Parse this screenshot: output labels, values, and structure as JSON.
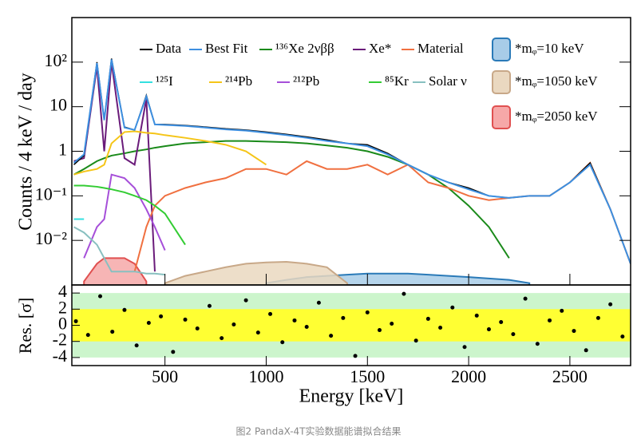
{
  "chart_data": [
    {
      "type": "line",
      "ylabel": "Counts / 4 keV / day",
      "log_y": true,
      "xlim": [
        40,
        2800
      ],
      "ylim": [
        0.001,
        1000
      ],
      "yticks": [
        {
          "value": 0.01,
          "label": "10⁻²"
        },
        {
          "value": 0.1,
          "label": "10⁻¹"
        },
        1,
        10,
        {
          "value": 100,
          "label": "10²"
        }
      ],
      "x": [
        50,
        100,
        164,
        200,
        236,
        300,
        350,
        408,
        450,
        500,
        600,
        700,
        800,
        900,
        1000,
        1100,
        1200,
        1300,
        1400,
        1500,
        1600,
        1700,
        1800,
        1900,
        2000,
        2100,
        2200,
        2300,
        2400,
        2500,
        2600,
        2700,
        2800
      ],
      "series": [
        {
          "name": "Data",
          "color": "#000000",
          "values": [
            0.5,
            0.8,
            100,
            5,
            120,
            3.5,
            3,
            18,
            4,
            4,
            3.8,
            3.5,
            3.2,
            3,
            2.7,
            2.4,
            2.1,
            1.8,
            1.5,
            1.4,
            0.9,
            0.5,
            0.3,
            0.2,
            0.15,
            0.1,
            0.09,
            0.1,
            0.1,
            0.2,
            0.55,
            0.05,
            0.003
          ]
        },
        {
          "name": "Best Fit",
          "color": "#3d8fe0",
          "values": [
            0.55,
            0.85,
            95,
            5,
            115,
            3.4,
            3,
            17,
            4,
            3.9,
            3.7,
            3.4,
            3.1,
            2.9,
            2.6,
            2.3,
            2,
            1.7,
            1.5,
            1.3,
            0.85,
            0.5,
            0.3,
            0.2,
            0.14,
            0.1,
            0.09,
            0.1,
            0.1,
            0.2,
            0.5,
            0.05,
            0.003
          ]
        },
        {
          "name": "¹³⁶Xe 2νββ",
          "color": "#1a8a1a",
          "values": [
            0.3,
            0.4,
            0.6,
            0.7,
            0.8,
            0.9,
            1,
            1.1,
            1.2,
            1.3,
            1.5,
            1.6,
            1.7,
            1.7,
            1.65,
            1.6,
            1.5,
            1.35,
            1.2,
            1,
            0.75,
            0.5,
            0.3,
            0.15,
            0.06,
            0.02,
            0.004,
            null,
            null,
            null,
            null,
            null,
            null
          ]
        },
        {
          "name": "Xe*",
          "color": "#6a1b7a",
          "values": [
            0.6,
            0.7,
            80,
            1,
            100,
            0.7,
            0.5,
            15,
            0.002,
            null,
            null,
            null,
            null,
            null,
            null,
            null,
            null,
            null,
            null,
            null,
            null,
            null,
            null,
            null,
            null,
            null,
            null,
            null,
            null,
            null,
            null,
            null,
            null
          ]
        },
        {
          "name": "Material",
          "color": "#f07040",
          "values": [
            null,
            null,
            null,
            null,
            null,
            null,
            0.002,
            0.02,
            0.06,
            0.1,
            0.15,
            0.2,
            0.25,
            0.4,
            0.4,
            0.3,
            0.6,
            0.4,
            0.4,
            0.5,
            0.3,
            0.5,
            0.2,
            0.15,
            0.1,
            0.08,
            0.09,
            0.1,
            0.1,
            0.2,
            0.55,
            0.05,
            0.003
          ]
        },
        {
          "name": "¹²⁵I",
          "color": "#33e0e0",
          "values": [
            0.03,
            0.03,
            null,
            null,
            null,
            null,
            null,
            null,
            null,
            null,
            null,
            null,
            null,
            null,
            null,
            null,
            null,
            null,
            null,
            null,
            null,
            null,
            null,
            null,
            null,
            null,
            null,
            null,
            null,
            null,
            null,
            null,
            null
          ]
        },
        {
          "name": "²¹⁴Pb",
          "color": "#f5c518",
          "values": [
            0.3,
            0.35,
            0.4,
            0.5,
            1.5,
            2.7,
            2.8,
            2.6,
            2.5,
            2.3,
            2,
            1.7,
            1.4,
            1,
            0.5,
            null,
            null,
            null,
            null,
            null,
            null,
            null,
            null,
            null,
            null,
            null,
            null,
            null,
            null,
            null,
            null,
            null,
            null
          ]
        },
        {
          "name": "²¹²Pb",
          "color": "#a64fd9",
          "values": [
            null,
            0.004,
            0.02,
            0.03,
            0.3,
            0.25,
            0.15,
            0.05,
            0.02,
            0.006,
            null,
            null,
            null,
            null,
            null,
            null,
            null,
            null,
            null,
            null,
            null,
            null,
            null,
            null,
            null,
            null,
            null,
            null,
            null,
            null,
            null,
            null,
            null
          ]
        },
        {
          "name": "⁸⁵Kr",
          "color": "#33cc33",
          "values": [
            0.17,
            0.17,
            0.16,
            0.15,
            0.14,
            0.12,
            0.1,
            0.08,
            0.06,
            0.04,
            0.008,
            null,
            null,
            null,
            null,
            null,
            null,
            null,
            null,
            null,
            null,
            null,
            null,
            null,
            null,
            null,
            null,
            null,
            null,
            null,
            null,
            null,
            null
          ]
        },
        {
          "name": "Solar ν",
          "color": "#88c0c0",
          "values": [
            0.02,
            0.015,
            0.008,
            0.004,
            0.002,
            0.002,
            0.002,
            0.0018,
            0.0018,
            0.0017,
            null,
            null,
            null,
            null,
            null,
            null,
            null,
            null,
            null,
            null,
            null,
            null,
            null,
            null,
            null,
            null,
            null,
            null,
            null,
            null,
            null,
            null,
            null
          ]
        },
        {
          "name": "*mᵩ=10 keV",
          "color": "#2a7ab8",
          "fill": "#a8cce8",
          "area": true,
          "values": [
            null,
            null,
            null,
            null,
            null,
            null,
            null,
            null,
            null,
            null,
            null,
            null,
            null,
            null,
            0.0011,
            0.0013,
            0.0015,
            0.0016,
            0.0017,
            0.0018,
            0.0018,
            0.0018,
            0.0017,
            0.0016,
            0.0015,
            0.0014,
            0.0013,
            0.0011,
            null,
            null,
            null,
            null,
            null
          ]
        },
        {
          "name": "*mᵩ=1050 keV",
          "color": "#c8a888",
          "fill": "#ead8c0",
          "area": true,
          "values": [
            null,
            null,
            null,
            null,
            null,
            null,
            null,
            null,
            null,
            0.0011,
            0.0016,
            0.002,
            0.0025,
            0.003,
            0.0032,
            0.0033,
            0.003,
            0.0025,
            0.0011,
            null,
            null,
            null,
            null,
            null,
            null,
            null,
            null,
            null,
            null,
            null,
            null,
            null,
            null
          ]
        },
        {
          "name": "*mᵩ=2050 keV",
          "color": "#e05050",
          "fill": "#f6a8a8",
          "area": true,
          "values": [
            null,
            0.0012,
            0.003,
            0.004,
            0.004,
            0.004,
            0.003,
            0.0012,
            null,
            null,
            null,
            null,
            null,
            null,
            null,
            null,
            null,
            null,
            null,
            null,
            null,
            null,
            null,
            null,
            null,
            null,
            null,
            null,
            null,
            null,
            null,
            null,
            null
          ]
        }
      ]
    },
    {
      "type": "scatter",
      "ylabel": "Res. [σ]",
      "xlabel": "Energy [keV]",
      "xlim": [
        40,
        2800
      ],
      "ylim": [
        -5,
        5
      ],
      "yticks": [
        -4,
        -2,
        0,
        2,
        4
      ],
      "xticks": [
        500,
        1000,
        1500,
        2000,
        2500
      ],
      "bands": [
        {
          "value": 4,
          "color": "#ccf5cc"
        },
        {
          "value": 2,
          "color": "#ffff33"
        }
      ],
      "x": [
        60,
        120,
        180,
        240,
        300,
        360,
        420,
        480,
        540,
        600,
        660,
        720,
        780,
        840,
        900,
        960,
        1020,
        1080,
        1140,
        1200,
        1260,
        1320,
        1380,
        1440,
        1500,
        1560,
        1620,
        1680,
        1740,
        1800,
        1860,
        1920,
        1980,
        2040,
        2100,
        2160,
        2220,
        2280,
        2340,
        2400,
        2460,
        2520,
        2580,
        2640,
        2700,
        2760
      ],
      "values": [
        0.5,
        -1.2,
        3.6,
        -0.8,
        1.9,
        -2.5,
        0.3,
        1.1,
        -3.3,
        0.7,
        -0.4,
        2.4,
        -1.6,
        0.1,
        3.1,
        -0.9,
        1.4,
        -2.1,
        0.6,
        -0.2,
        2.8,
        -1.3,
        0.9,
        -3.8,
        1.6,
        -0.6,
        0.2,
        3.9,
        -1.9,
        0.8,
        -0.3,
        2.2,
        -2.7,
        1.2,
        -0.5,
        0.4,
        -1.1,
        3.3,
        -2.3,
        0.6,
        1.8,
        -0.7,
        -3.1,
        0.9,
        2.6,
        -1.4
      ]
    }
  ],
  "caption": "图2 PandaX-4T实验数据能谱拟合结果"
}
